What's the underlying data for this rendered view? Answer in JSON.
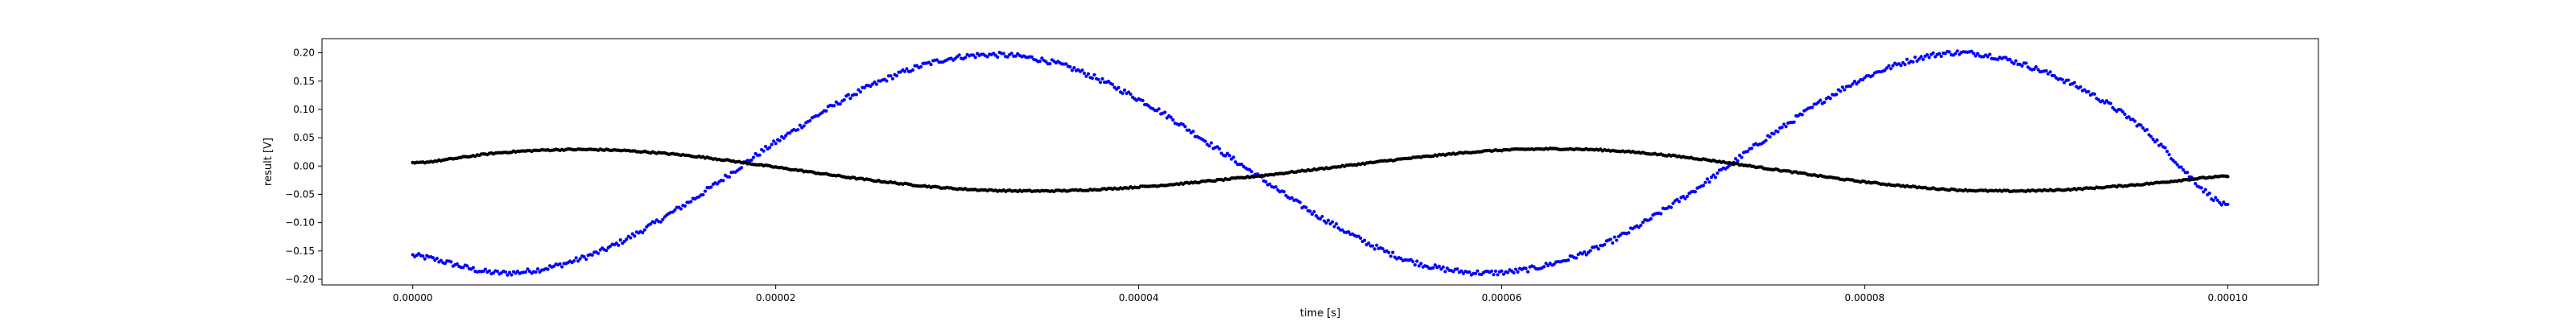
{
  "chart_data": {
    "type": "scatter",
    "title": "",
    "xlabel": "time [s]",
    "ylabel": "result [V]",
    "xlim": [
      -5e-06,
      0.000105
    ],
    "ylim": [
      -0.21,
      0.225
    ],
    "x_tick_values": [
      0,
      2e-05,
      4e-05,
      6e-05,
      8e-05,
      0.0001
    ],
    "x_tick_labels": [
      "0.00000",
      "0.00002",
      "0.00004",
      "0.00006",
      "0.00008",
      "0.00010"
    ],
    "y_tick_values": [
      -0.2,
      -0.15,
      -0.1,
      -0.05,
      0,
      0.05,
      0.1,
      0.15,
      0.2
    ],
    "y_tick_labels": [
      "−0.20",
      "−0.15",
      "−0.10",
      "−0.05",
      "0.00",
      "0.05",
      "0.10",
      "0.15",
      "0.20"
    ],
    "grid": false,
    "legend": "none",
    "series": [
      {
        "color": "#0000ff",
        "marker": "dot",
        "x": [
          0,
          5e-06,
          1e-05,
          1.5e-05,
          2e-05,
          2.5e-05,
          3e-05,
          3.5e-05,
          4e-05,
          4.5e-05,
          5e-05,
          5.5e-05,
          6e-05,
          6.5e-05,
          7e-05,
          7.5e-05,
          8e-05,
          8.5e-05,
          9e-05,
          9.5e-05,
          0.0001
        ],
        "y": [
          -0.158,
          -0.189,
          -0.155,
          -0.068,
          0.042,
          0.138,
          0.192,
          0.185,
          0.118,
          0.016,
          -0.09,
          -0.168,
          -0.188,
          -0.148,
          -0.056,
          0.058,
          0.156,
          0.2,
          0.165,
          0.075,
          -0.072
        ]
      },
      {
        "color": "#000000",
        "marker": "dot",
        "x": [
          0,
          5e-06,
          1e-05,
          1.5e-05,
          2e-05,
          2.5e-05,
          3e-05,
          3.5e-05,
          4e-05,
          4.5e-05,
          5e-05,
          5.5e-05,
          6e-05,
          6.5e-05,
          7e-05,
          7.5e-05,
          8e-05,
          8.5e-05,
          9e-05,
          9.5e-05,
          0.0001
        ],
        "y": [
          0.005,
          0.024,
          0.029,
          0.019,
          -0.002,
          -0.024,
          -0.04,
          -0.044,
          -0.037,
          -0.023,
          -0.005,
          0.014,
          0.028,
          0.029,
          0.016,
          -0.006,
          -0.028,
          -0.042,
          -0.043,
          -0.033,
          -0.018
        ]
      }
    ]
  }
}
